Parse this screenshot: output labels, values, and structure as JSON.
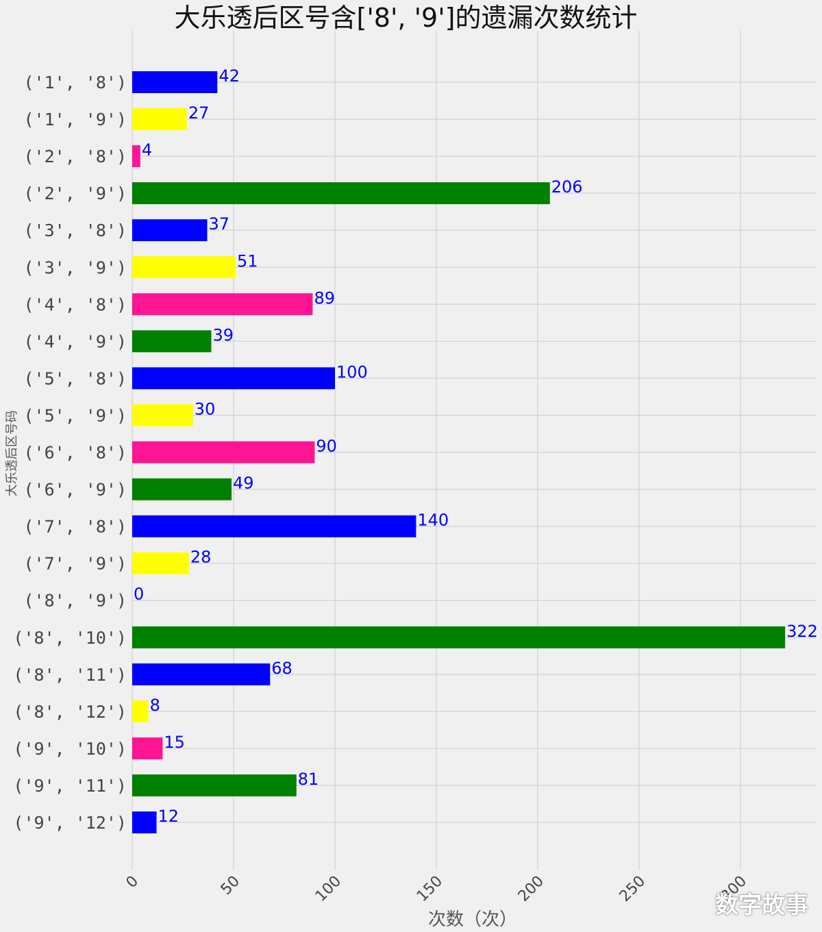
{
  "chart_data": {
    "type": "bar",
    "orientation": "horizontal",
    "title": "大乐透后区号含['8', '9']的遗漏次数统计",
    "xlabel": "次数（次）",
    "ylabel": "大乐透后区号码",
    "xlim": [
      0,
      340
    ],
    "xticks": [
      0,
      50,
      100,
      150,
      200,
      250,
      300
    ],
    "xtick_labels": [
      "0",
      "50",
      "100",
      "150",
      "200",
      "250",
      "300"
    ],
    "grid": true,
    "categories": [
      "('1', '8')",
      "('1', '9')",
      "('2', '8')",
      "('2', '9')",
      "('3', '8')",
      "('3', '9')",
      "('4', '8')",
      "('4', '9')",
      "('5', '8')",
      "('5', '9')",
      "('6', '8')",
      "('6', '9')",
      "('7', '8')",
      "('7', '9')",
      "('8', '9')",
      "('8', '10')",
      "('8', '11')",
      "('8', '12')",
      "('9', '10')",
      "('9', '11')",
      "('9', '12')"
    ],
    "values": [
      42,
      27,
      4,
      206,
      37,
      51,
      89,
      39,
      100,
      30,
      90,
      49,
      140,
      28,
      0,
      322,
      68,
      8,
      15,
      81,
      12
    ],
    "bar_colors": [
      "#0000ff",
      "#ffff00",
      "#ff1493",
      "#008000"
    ],
    "data_label_color": "#0000ff"
  },
  "watermark": "数字故事"
}
